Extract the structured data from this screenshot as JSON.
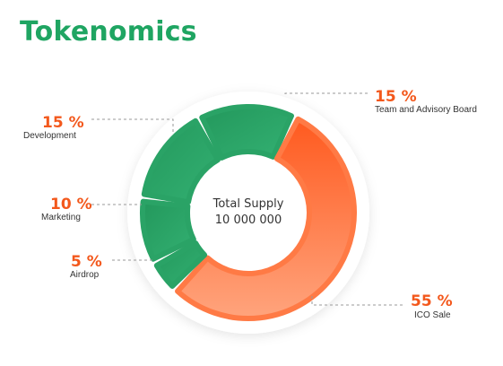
{
  "title": "Tokenomics",
  "chart_data": {
    "type": "pie",
    "title": "Tokenomics",
    "center_label": "Total Supply",
    "total_supply": "10 000 000",
    "slices": [
      {
        "label": "Team and Advisory Board",
        "value": 15,
        "display": "15 %",
        "color": "#2aa366"
      },
      {
        "label": "ICO Sale",
        "value": 55,
        "display": "55 %",
        "color": "#ff6a2e"
      },
      {
        "label": "Airdrop",
        "value": 5,
        "display": "5 %",
        "color": "#2aa366"
      },
      {
        "label": "Marketing",
        "value": 10,
        "display": "10 %",
        "color": "#2aa366"
      },
      {
        "label": "Development",
        "value": 15,
        "display": "15 %",
        "color": "#2aa366"
      }
    ]
  },
  "colors": {
    "green": "#1fa562",
    "orange": "#f3581c",
    "ico_gradient_start": "#ff5a1f",
    "ico_gradient_end": "#ffa47d"
  }
}
